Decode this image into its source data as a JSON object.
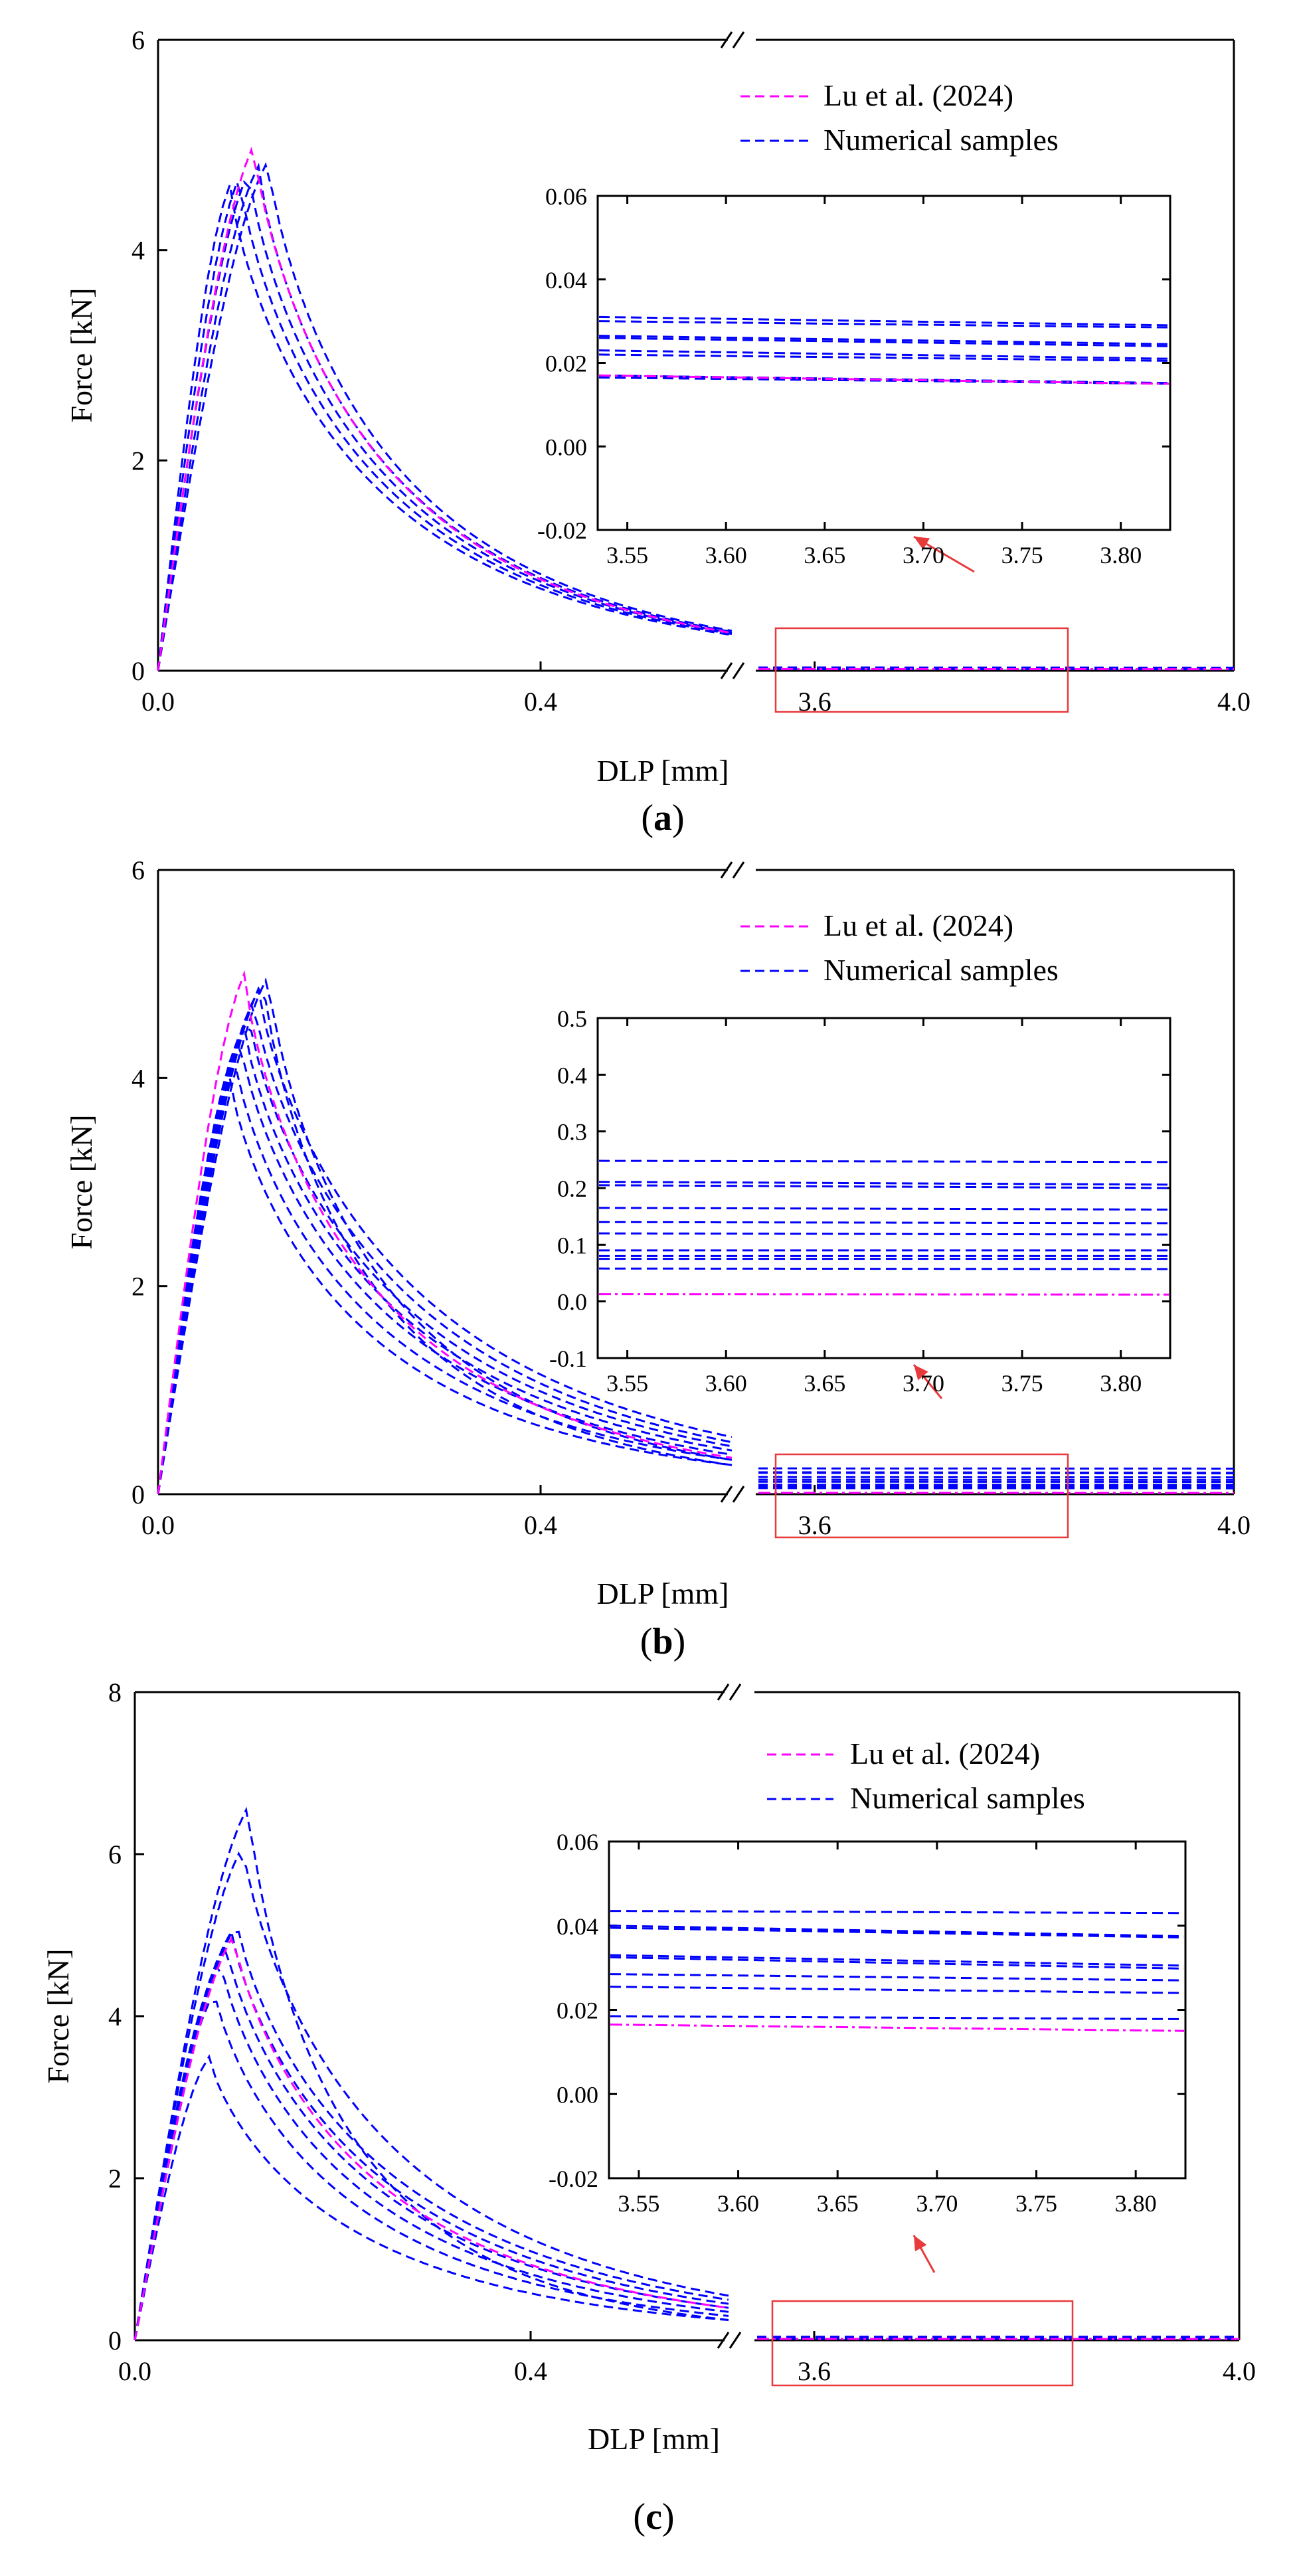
{
  "colors": {
    "reference": "#ff00ff",
    "samples": "#0000ff",
    "highlight": "#e8393b",
    "axis": "#000000"
  },
  "chart_data": [
    {
      "type": "line",
      "panel_label": "a",
      "xlabel": "DLP [mm]",
      "ylabel": "Force [kN]",
      "ylim": [
        0,
        6
      ],
      "yticks": [
        "0",
        "2",
        "4",
        "6"
      ],
      "xlim": [
        0,
        4.0
      ],
      "x_break": [
        0.6,
        3.54
      ],
      "xtick_labels": [
        "0.0",
        "0.4",
        "3.6",
        "4.0"
      ],
      "legend": [
        {
          "label": "Lu et al. (2024)",
          "color": "#ff00ff",
          "style": "dashed"
        },
        {
          "label": "Numerical samples",
          "color": "#0000ff",
          "style": "dashed"
        }
      ],
      "reference_peak": {
        "x": 0.1,
        "y": 5.0
      },
      "sample_peaks": [
        4.62,
        4.7,
        4.75,
        4.8,
        4.85
      ],
      "reference_end_force_at_0_6mm": 0.36,
      "sample_end_force_at_0_6mm": [
        0.34,
        0.35,
        0.36,
        0.37,
        0.38
      ],
      "inset": {
        "xlim": [
          3.535,
          3.825
        ],
        "xticks": [
          "3.55",
          "3.60",
          "3.65",
          "3.70",
          "3.75",
          "3.80"
        ],
        "ylim": [
          -0.02,
          0.06
        ],
        "yticks": [
          "-0.02",
          "0.00",
          "0.02",
          "0.04",
          "0.06"
        ],
        "reference_line": {
          "start": 0.017,
          "end": 0.015,
          "style": "dashdot"
        },
        "sample_lines": [
          {
            "start": 0.031,
            "end": 0.029
          },
          {
            "start": 0.03,
            "end": 0.0285
          },
          {
            "start": 0.0265,
            "end": 0.0245
          },
          {
            "start": 0.026,
            "end": 0.024
          },
          {
            "start": 0.023,
            "end": 0.021
          },
          {
            "start": 0.022,
            "end": 0.0205
          },
          {
            "start": 0.017,
            "end": 0.0152
          },
          {
            "start": 0.0165,
            "end": 0.015
          }
        ]
      }
    },
    {
      "type": "line",
      "panel_label": "b",
      "xlabel": "DLP [mm]",
      "ylabel": "Force [kN]",
      "ylim": [
        0,
        6
      ],
      "yticks": [
        "0",
        "2",
        "4",
        "6"
      ],
      "xlim": [
        0,
        4.0
      ],
      "x_break": [
        0.6,
        3.54
      ],
      "xtick_labels": [
        "0.0",
        "0.4",
        "3.6",
        "4.0"
      ],
      "legend": [
        {
          "label": "Lu et al. (2024)",
          "color": "#ff00ff",
          "style": "dashed"
        },
        {
          "label": "Numerical samples",
          "color": "#0000ff",
          "style": "dashed"
        }
      ],
      "reference_peak": {
        "x": 0.09,
        "y": 5.0
      },
      "sample_peaks": [
        4.0,
        4.2,
        4.4,
        4.5,
        4.6,
        4.75,
        4.85,
        4.95,
        4.98
      ],
      "reference_end_force_at_0_6mm": 0.35,
      "sample_end_force_at_0_6mm": [
        0.28,
        0.33,
        0.38,
        0.42,
        0.46,
        0.5,
        0.55
      ],
      "inset": {
        "xlim": [
          3.535,
          3.825
        ],
        "xticks": [
          "3.55",
          "3.60",
          "3.65",
          "3.70",
          "3.75",
          "3.80"
        ],
        "ylim": [
          -0.1,
          0.5
        ],
        "yticks": [
          "-0.1",
          "0.0",
          "0.1",
          "0.2",
          "0.3",
          "0.4",
          "0.5"
        ],
        "reference_line": {
          "start": 0.013,
          "end": 0.012,
          "style": "dashdot"
        },
        "sample_lines": [
          {
            "start": 0.248,
            "end": 0.246
          },
          {
            "start": 0.211,
            "end": 0.206
          },
          {
            "start": 0.205,
            "end": 0.2
          },
          {
            "start": 0.165,
            "end": 0.162
          },
          {
            "start": 0.14,
            "end": 0.138
          },
          {
            "start": 0.12,
            "end": 0.118
          },
          {
            "start": 0.09,
            "end": 0.09
          },
          {
            "start": 0.08,
            "end": 0.08
          },
          {
            "start": 0.075,
            "end": 0.075
          },
          {
            "start": 0.058,
            "end": 0.057
          }
        ]
      }
    },
    {
      "type": "line",
      "panel_label": "c",
      "xlabel": "DLP [mm]",
      "ylabel": "Force [kN]",
      "ylim": [
        0,
        8
      ],
      "yticks": [
        "0",
        "2",
        "4",
        "6",
        "8"
      ],
      "xlim": [
        0,
        4.0
      ],
      "x_break": [
        0.6,
        3.54
      ],
      "xtick_labels": [
        "0.0",
        "0.4",
        "3.6",
        "4.0"
      ],
      "legend": [
        {
          "label": "Lu et al. (2024)",
          "color": "#ff00ff",
          "style": "dashed"
        },
        {
          "label": "Numerical samples",
          "color": "#0000ff",
          "style": "dashed"
        }
      ],
      "reference_peak": {
        "x": 0.1,
        "y": 5.0
      },
      "sample_peaks": [
        3.5,
        4.3,
        4.7,
        4.9,
        5.05,
        5.15,
        6.1,
        6.6
      ],
      "reference_end_force_at_0_6mm": 0.4,
      "sample_end_force_at_0_6mm": [
        0.25,
        0.3,
        0.35,
        0.4,
        0.45,
        0.5,
        0.55
      ],
      "inset": {
        "xlim": [
          3.535,
          3.825
        ],
        "xticks": [
          "3.55",
          "3.60",
          "3.65",
          "3.70",
          "3.75",
          "3.80"
        ],
        "ylim": [
          -0.02,
          0.06
        ],
        "yticks": [
          "-0.02",
          "0.00",
          "0.02",
          "0.04",
          "0.06"
        ],
        "reference_line": {
          "start": 0.0165,
          "end": 0.015,
          "style": "dashdot"
        },
        "sample_lines": [
          {
            "start": 0.0435,
            "end": 0.043
          },
          {
            "start": 0.04,
            "end": 0.0375
          },
          {
            "start": 0.0395,
            "end": 0.0372
          },
          {
            "start": 0.033,
            "end": 0.0305
          },
          {
            "start": 0.0325,
            "end": 0.0298
          },
          {
            "start": 0.0285,
            "end": 0.027
          },
          {
            "start": 0.0255,
            "end": 0.024
          },
          {
            "start": 0.0185,
            "end": 0.0178
          }
        ]
      }
    }
  ]
}
